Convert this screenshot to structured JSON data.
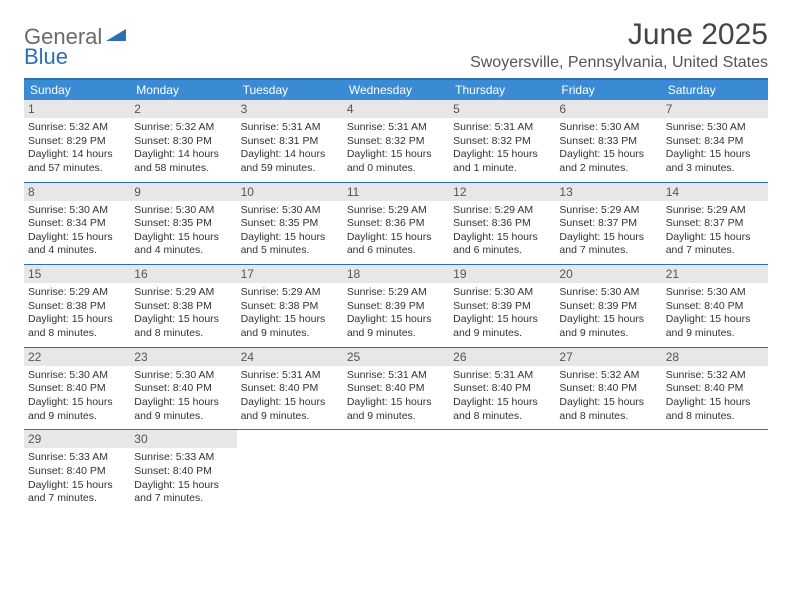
{
  "logo": {
    "gray": "General",
    "blue": "Blue"
  },
  "title": "June 2025",
  "location": "Swoyersville, Pennsylvania, United States",
  "dayNames": [
    "Sunday",
    "Monday",
    "Tuesday",
    "Wednesday",
    "Thursday",
    "Friday",
    "Saturday"
  ],
  "colors": {
    "headerBlue": "#3b8bd4",
    "borderBlue": "#2b6fb5",
    "dayNumBg": "#e7e7e7",
    "logoGray": "#6b6b6b",
    "logoBlue": "#2b6fb5"
  },
  "weeks": [
    [
      {
        "n": "1",
        "sr": "5:32 AM",
        "ss": "8:29 PM",
        "dl": "14 hours and 57 minutes."
      },
      {
        "n": "2",
        "sr": "5:32 AM",
        "ss": "8:30 PM",
        "dl": "14 hours and 58 minutes."
      },
      {
        "n": "3",
        "sr": "5:31 AM",
        "ss": "8:31 PM",
        "dl": "14 hours and 59 minutes."
      },
      {
        "n": "4",
        "sr": "5:31 AM",
        "ss": "8:32 PM",
        "dl": "15 hours and 0 minutes."
      },
      {
        "n": "5",
        "sr": "5:31 AM",
        "ss": "8:32 PM",
        "dl": "15 hours and 1 minute."
      },
      {
        "n": "6",
        "sr": "5:30 AM",
        "ss": "8:33 PM",
        "dl": "15 hours and 2 minutes."
      },
      {
        "n": "7",
        "sr": "5:30 AM",
        "ss": "8:34 PM",
        "dl": "15 hours and 3 minutes."
      }
    ],
    [
      {
        "n": "8",
        "sr": "5:30 AM",
        "ss": "8:34 PM",
        "dl": "15 hours and 4 minutes."
      },
      {
        "n": "9",
        "sr": "5:30 AM",
        "ss": "8:35 PM",
        "dl": "15 hours and 4 minutes."
      },
      {
        "n": "10",
        "sr": "5:30 AM",
        "ss": "8:35 PM",
        "dl": "15 hours and 5 minutes."
      },
      {
        "n": "11",
        "sr": "5:29 AM",
        "ss": "8:36 PM",
        "dl": "15 hours and 6 minutes."
      },
      {
        "n": "12",
        "sr": "5:29 AM",
        "ss": "8:36 PM",
        "dl": "15 hours and 6 minutes."
      },
      {
        "n": "13",
        "sr": "5:29 AM",
        "ss": "8:37 PM",
        "dl": "15 hours and 7 minutes."
      },
      {
        "n": "14",
        "sr": "5:29 AM",
        "ss": "8:37 PM",
        "dl": "15 hours and 7 minutes."
      }
    ],
    [
      {
        "n": "15",
        "sr": "5:29 AM",
        "ss": "8:38 PM",
        "dl": "15 hours and 8 minutes."
      },
      {
        "n": "16",
        "sr": "5:29 AM",
        "ss": "8:38 PM",
        "dl": "15 hours and 8 minutes."
      },
      {
        "n": "17",
        "sr": "5:29 AM",
        "ss": "8:38 PM",
        "dl": "15 hours and 9 minutes."
      },
      {
        "n": "18",
        "sr": "5:29 AM",
        "ss": "8:39 PM",
        "dl": "15 hours and 9 minutes."
      },
      {
        "n": "19",
        "sr": "5:30 AM",
        "ss": "8:39 PM",
        "dl": "15 hours and 9 minutes."
      },
      {
        "n": "20",
        "sr": "5:30 AM",
        "ss": "8:39 PM",
        "dl": "15 hours and 9 minutes."
      },
      {
        "n": "21",
        "sr": "5:30 AM",
        "ss": "8:40 PM",
        "dl": "15 hours and 9 minutes."
      }
    ],
    [
      {
        "n": "22",
        "sr": "5:30 AM",
        "ss": "8:40 PM",
        "dl": "15 hours and 9 minutes."
      },
      {
        "n": "23",
        "sr": "5:30 AM",
        "ss": "8:40 PM",
        "dl": "15 hours and 9 minutes."
      },
      {
        "n": "24",
        "sr": "5:31 AM",
        "ss": "8:40 PM",
        "dl": "15 hours and 9 minutes."
      },
      {
        "n": "25",
        "sr": "5:31 AM",
        "ss": "8:40 PM",
        "dl": "15 hours and 9 minutes."
      },
      {
        "n": "26",
        "sr": "5:31 AM",
        "ss": "8:40 PM",
        "dl": "15 hours and 8 minutes."
      },
      {
        "n": "27",
        "sr": "5:32 AM",
        "ss": "8:40 PM",
        "dl": "15 hours and 8 minutes."
      },
      {
        "n": "28",
        "sr": "5:32 AM",
        "ss": "8:40 PM",
        "dl": "15 hours and 8 minutes."
      }
    ],
    [
      {
        "n": "29",
        "sr": "5:33 AM",
        "ss": "8:40 PM",
        "dl": "15 hours and 7 minutes."
      },
      {
        "n": "30",
        "sr": "5:33 AM",
        "ss": "8:40 PM",
        "dl": "15 hours and 7 minutes."
      },
      null,
      null,
      null,
      null,
      null
    ]
  ],
  "labels": {
    "sunrise": "Sunrise: ",
    "sunset": "Sunset: ",
    "daylight": "Daylight: "
  }
}
